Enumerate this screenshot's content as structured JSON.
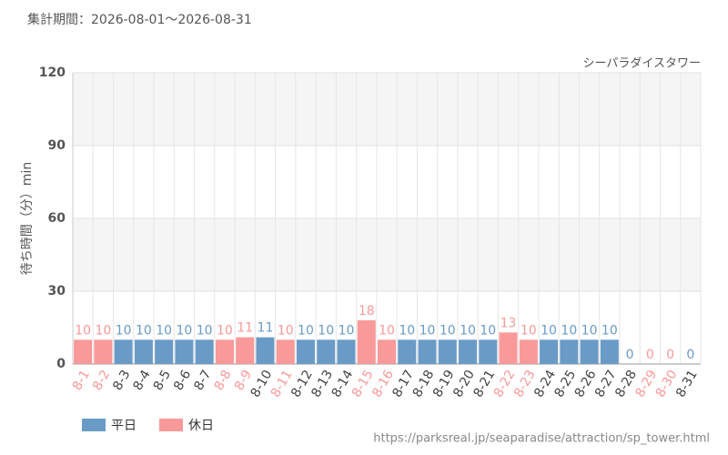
{
  "chart_data": {
    "type": "bar",
    "title": "集計期間：2026-08-01～2026-08-31",
    "subtitle": "シーパラダイスタワー",
    "y_label": "待ち時間（分）min",
    "source": "https://parksreal.jp/seaparadise/attraction/sp_tower.html",
    "categories": [
      "8-1",
      "8-2",
      "8-3",
      "8-4",
      "8-5",
      "8-6",
      "8-7",
      "8-8",
      "8-9",
      "8-10",
      "8-11",
      "8-12",
      "8-13",
      "8-14",
      "8-15",
      "8-16",
      "8-17",
      "8-18",
      "8-19",
      "8-20",
      "8-21",
      "8-22",
      "8-23",
      "8-24",
      "8-25",
      "8-26",
      "8-27",
      "8-28",
      "8-29",
      "8-30",
      "8-31"
    ],
    "series": [
      {
        "name": "平日",
        "color": "#6a9bc6",
        "values": [
          null,
          null,
          10,
          10,
          10,
          10,
          10,
          null,
          null,
          11,
          null,
          10,
          10,
          10,
          null,
          null,
          10,
          10,
          10,
          10,
          10,
          null,
          null,
          10,
          10,
          10,
          10,
          0,
          null,
          null,
          0
        ]
      },
      {
        "name": "休日",
        "color": "#f99999",
        "values": [
          10,
          10,
          null,
          null,
          null,
          null,
          null,
          10,
          11,
          null,
          10,
          null,
          null,
          null,
          18,
          10,
          null,
          null,
          null,
          null,
          null,
          13,
          10,
          null,
          null,
          null,
          null,
          null,
          0,
          0,
          null
        ]
      }
    ],
    "ylim": [
      0,
      120
    ],
    "yticks": [
      0,
      30,
      60,
      90,
      120
    ],
    "grid": true
  }
}
